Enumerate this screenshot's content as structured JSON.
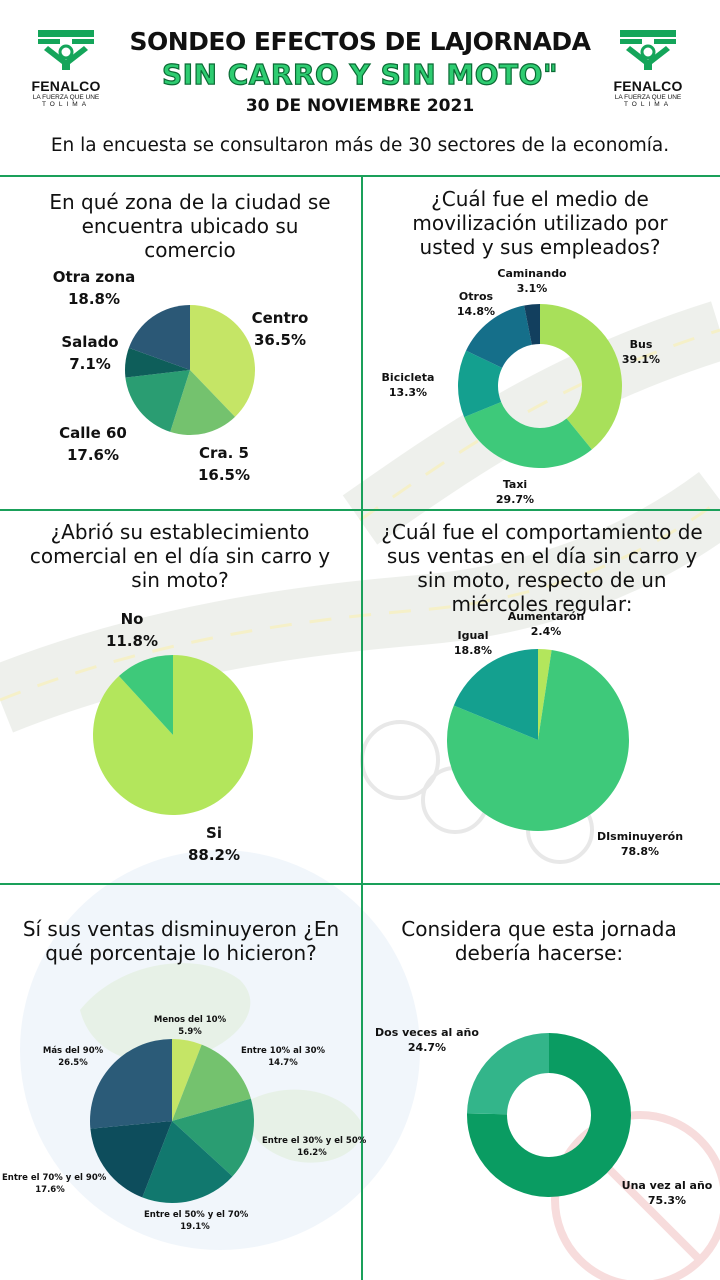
{
  "header": {
    "brand": "FENALCO",
    "slogan": "LA FUERZA QUE UNE",
    "region": "TOLIMA",
    "title_line1": "SONDEO EFECTOS DE LAJORNADA",
    "title_line2": "SIN CARRO Y SIN MOTO\"",
    "date": "30 DE NOVIEMBRE 2021"
  },
  "intro": "En la encuesta se consultaron más de 30 sectores de la economía.",
  "colors": {
    "divider": "#1aa05a",
    "title_green": "#2ecc71"
  },
  "chart_data": [
    {
      "type": "pie",
      "title": "En qué zona de la ciudad se encuentra ubicado su comercio",
      "slices": [
        {
          "label": "Centro",
          "value": 36.5,
          "text": "36.5%",
          "color": "#c5e566"
        },
        {
          "label": "Cra. 5",
          "value": 16.5,
          "text": "16.5%",
          "color": "#74c26e"
        },
        {
          "label": "Calle 60",
          "value": 17.6,
          "text": "17.6%",
          "color": "#2a9d72"
        },
        {
          "label": "Salado",
          "value": 7.1,
          "text": "7.1%",
          "color": "#0e5e5a"
        },
        {
          "label": "Otra zona",
          "value": 18.8,
          "text": "18.8%",
          "color": "#2b5876"
        }
      ]
    },
    {
      "type": "donut",
      "title": "¿Cuál fue el medio de movilización utilizado por usted y sus empleados?",
      "slices": [
        {
          "label": "Bus",
          "value": 39.1,
          "text": "39.1%",
          "color": "#a8e05a"
        },
        {
          "label": "Taxi",
          "value": 29.7,
          "text": "29.7%",
          "color": "#3ec97a"
        },
        {
          "label": "Bicicleta",
          "value": 13.3,
          "text": "13.3%",
          "color": "#14a08f"
        },
        {
          "label": "Otros",
          "value": 14.8,
          "text": "14.8%",
          "color": "#156f8a"
        },
        {
          "label": "Caminando",
          "value": 3.1,
          "text": "3.1%",
          "color": "#123f5e"
        }
      ]
    },
    {
      "type": "pie",
      "title": "¿Abrió su establecimiento comercial en el día sin carro y sin moto?",
      "slices": [
        {
          "label": "Si",
          "value": 88.2,
          "text": "88.2%",
          "color": "#b3e65c"
        },
        {
          "label": "No",
          "value": 11.8,
          "text": "11.8%",
          "color": "#3ec97a"
        }
      ]
    },
    {
      "type": "pie",
      "title": "¿Cuál fue el comportamiento de sus ventas en el día sin carro y sin moto, respecto de un miércoles regular:",
      "slices": [
        {
          "label": "Aumentarón",
          "value": 2.4,
          "text": "2.4%",
          "color": "#b3e65c"
        },
        {
          "label": "DIsminuyerón",
          "value": 78.8,
          "text": "78.8%",
          "color": "#3ec97a"
        },
        {
          "label": "Igual",
          "value": 18.8,
          "text": "18.8%",
          "color": "#14a08f"
        }
      ]
    },
    {
      "type": "pie",
      "title": "Sí sus ventas disminuyeron ¿En qué porcentaje lo hicieron?",
      "slices": [
        {
          "label": "Menos del 10%",
          "value": 5.9,
          "text": "5.9%",
          "color": "#c5e566"
        },
        {
          "label": "Entre 10% al 30%",
          "value": 14.7,
          "text": "14.7%",
          "color": "#74c26e"
        },
        {
          "label": "Entre el 30% y el 50%",
          "value": 16.2,
          "text": "16.2%",
          "color": "#2a9d72"
        },
        {
          "label": "Entre el 50% y el 70%",
          "value": 19.1,
          "text": "19.1%",
          "color": "#11786e"
        },
        {
          "label": "Entre el 70% y el 90%",
          "value": 17.6,
          "text": "17.6%",
          "color": "#0d4d5c"
        },
        {
          "label": "Más del 90%",
          "value": 26.5,
          "text": "26.5%",
          "color": "#2b5b78"
        }
      ]
    },
    {
      "type": "donut",
      "title": "Considera que esta jornada debería hacerse:",
      "slices": [
        {
          "label": "Una vez al año",
          "value": 75.3,
          "text": "75.3%",
          "color": "#0a9c62"
        },
        {
          "label": "Dos veces al año",
          "value": 24.7,
          "text": "24.7%",
          "color": "#33b58a"
        }
      ]
    }
  ]
}
